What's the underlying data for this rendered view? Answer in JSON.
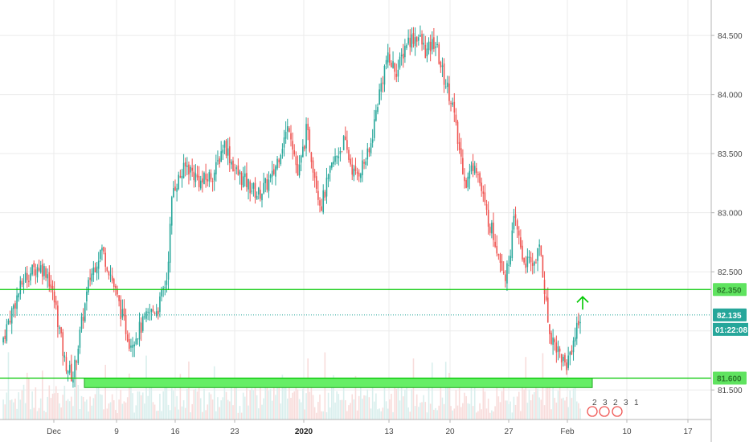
{
  "chart_data": {
    "type": "candlestick",
    "y_axis": {
      "ylim": [
        81.25,
        84.8
      ],
      "ticks": [
        "84.500",
        "84.000",
        "83.500",
        "83.000",
        "82.500",
        "81.500"
      ],
      "tick_values": [
        84.5,
        84.0,
        83.5,
        83.0,
        82.5,
        81.5
      ]
    },
    "x_axis": {
      "ticks": [
        {
          "label": "Dec",
          "bold": false
        },
        {
          "label": "9",
          "bold": false
        },
        {
          "label": "16",
          "bold": false
        },
        {
          "label": "23",
          "bold": false
        },
        {
          "label": "2020",
          "bold": true
        },
        {
          "label": "13",
          "bold": false
        },
        {
          "label": "20",
          "bold": false
        },
        {
          "label": "27",
          "bold": false
        },
        {
          "label": "Feb",
          "bold": false
        },
        {
          "label": "10",
          "bold": false
        },
        {
          "label": "17",
          "bold": false
        }
      ]
    },
    "current_price": {
      "value": "82.135",
      "level": 82.135,
      "countdown": "01:22:08"
    },
    "horizontal_lines": [
      {
        "label": "82.350",
        "level": 82.35,
        "color": "#00c800"
      },
      {
        "label": "81.600",
        "level": 81.6,
        "color": "#00c800"
      }
    ],
    "support_zone": {
      "top": 81.6,
      "bottom": 81.52,
      "color": "#66ee66"
    },
    "arrow": {
      "direction": "up",
      "color": "#00c800"
    },
    "event_markers": [
      "2",
      "3",
      "2",
      "3",
      "1"
    ],
    "colors": {
      "up": "#26a69a",
      "down": "#ef5350",
      "volume": "#e0e0e0",
      "grid": "#ebebeb"
    },
    "candle_path": [
      [
        0,
        81.9
      ],
      [
        4,
        82.2
      ],
      [
        8,
        82.45
      ],
      [
        13,
        82.55
      ],
      [
        16,
        82.5
      ],
      [
        19,
        82.2
      ],
      [
        22,
        81.75
      ],
      [
        25,
        81.6
      ],
      [
        28,
        82.05
      ],
      [
        31,
        82.45
      ],
      [
        35,
        82.7
      ],
      [
        38,
        82.5
      ],
      [
        42,
        82.15
      ],
      [
        45,
        81.9
      ],
      [
        48,
        82.0
      ],
      [
        52,
        82.15
      ],
      [
        55,
        82.2
      ],
      [
        58,
        82.45
      ],
      [
        60,
        83.2
      ],
      [
        65,
        83.4
      ],
      [
        70,
        83.25
      ],
      [
        75,
        83.35
      ],
      [
        78,
        83.6
      ],
      [
        82,
        83.35
      ],
      [
        86,
        83.25
      ],
      [
        90,
        83.15
      ],
      [
        95,
        83.3
      ],
      [
        98,
        83.55
      ],
      [
        101,
        83.75
      ],
      [
        104,
        83.3
      ],
      [
        107,
        83.7
      ],
      [
        112,
        83.05
      ],
      [
        116,
        83.4
      ],
      [
        120,
        83.6
      ],
      [
        124,
        83.3
      ],
      [
        129,
        83.5
      ],
      [
        132,
        83.95
      ],
      [
        135,
        84.3
      ],
      [
        139,
        84.2
      ],
      [
        142,
        84.45
      ],
      [
        146,
        84.5
      ],
      [
        149,
        84.35
      ],
      [
        152,
        84.45
      ],
      [
        155,
        84.15
      ],
      [
        158,
        83.95
      ],
      [
        160,
        83.6
      ],
      [
        163,
        83.25
      ],
      [
        166,
        83.45
      ],
      [
        170,
        83.0
      ],
      [
        174,
        82.7
      ],
      [
        177,
        82.45
      ],
      [
        180,
        82.95
      ],
      [
        183,
        82.6
      ],
      [
        186,
        82.55
      ],
      [
        189,
        82.7
      ],
      [
        192,
        82.0
      ],
      [
        195,
        81.85
      ],
      [
        198,
        81.7
      ],
      [
        201,
        81.95
      ],
      [
        203,
        82.135
      ]
    ]
  }
}
